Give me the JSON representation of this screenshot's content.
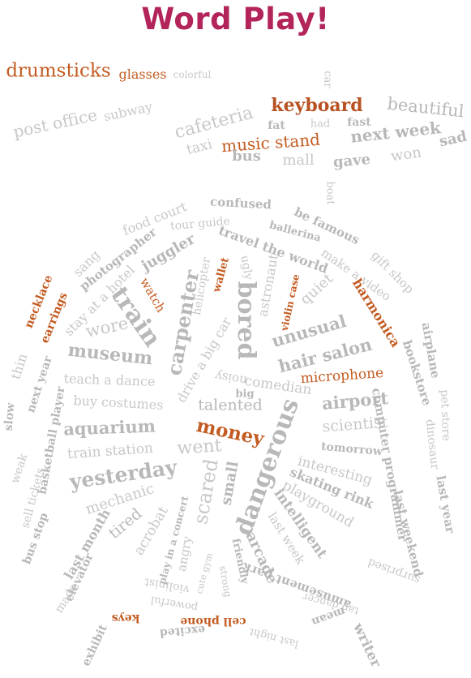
{
  "title": "Word Play!",
  "colors": {
    "title": "#b2245a",
    "accent_words": "#c35c22",
    "grey_words": "#b8b8b8"
  },
  "words": {
    "drumsticks": "drumsticks",
    "glasses": "glasses",
    "colorful": "colorful",
    "car": "car",
    "keyboard": "keyboard",
    "beautiful": "beautiful",
    "post_office": "post office",
    "subway": "subway",
    "cafeteria": "cafeteria",
    "fat": "fat",
    "had": "had",
    "fast": "fast",
    "music_stand": "music stand",
    "next_week_top": "next week",
    "sad": "sad",
    "taxi": "taxi",
    "bus": "bus",
    "mall": "mall",
    "gave": "gave",
    "won": "won",
    "boat": "boat",
    "food_court": "food court",
    "confused": "confused",
    "tour_guide": "tour guide",
    "be_famous": "be famous",
    "ballerina": "ballerina",
    "travel_the_world": "travel the world",
    "gift_shop": "gift shop",
    "sang": "sang",
    "photographer": "photographer",
    "juggler": "juggler",
    "make_a_video": "make a video",
    "stay_at_a_hotel": "stay at a hotel",
    "watch": "watch",
    "helicopter": "helicopter",
    "wallet": "wallet",
    "ugly": "ugly",
    "astronaut": "astronaut",
    "violin_case": "violin case",
    "quiet": "quiet",
    "harmonica": "harmonica",
    "necklace": "necklace",
    "earrings": "earrings",
    "train": "train",
    "carpenter": "carpenter",
    "drive_a_big_car": "drive a big car",
    "bored": "bored",
    "unusual": "unusual",
    "airplane": "airplane",
    "bookstore": "bookstore",
    "wore": "wore",
    "hair_salon": "hair salon",
    "thin": "thin",
    "next_year_left": "next year",
    "museum": "museum",
    "microphone": "microphone",
    "teach_a_dance": "teach a dance",
    "noisy": "noisy",
    "comedian": "comedian",
    "basketball_player": "basketball player",
    "buy_costumes": "buy costumes",
    "big": "big",
    "airport": "airport",
    "computer_programmer": "computer programmer",
    "pet_store": "pet store",
    "talented": "talented",
    "slow": "slow",
    "aquarium": "aquarium",
    "money": "money",
    "scientist": "scientist",
    "dinosaur": "dinosaur",
    "went": "went",
    "dangerous": "dangerous",
    "tomorrow": "tomorrow",
    "train_station": "train station",
    "weak": "weak",
    "sell_tickets": "sell tickets",
    "interesting": "interesting",
    "yesterday": "yesterday",
    "scared": "scared",
    "small": "small",
    "skating_rink": "skating rink",
    "last_year": "last year",
    "mechanic": "mechanic",
    "playground": "playground",
    "last_weekend": "last weekend",
    "bus_stop": "bus stop",
    "tired": "tired",
    "acrobat": "acrobat",
    "play_in_a_concert": "play in a concert",
    "intelligent": "intelligent",
    "last_month": "last month",
    "angry": "angry",
    "cute_gym": "cute gym",
    "friendly": "friendly",
    "last_week": "last week",
    "arcade": "arcade",
    "surprised": "surprised",
    "elevator": "elevator",
    "strong": "strong",
    "amusement_park": "amusement park",
    "made": "made",
    "violinist": "violinist",
    "powerful": "powerful",
    "tap_dancer": "tap dancer",
    "keys": "keys",
    "cell_phone": "cell phone",
    "mean": "mean",
    "exhibit": "exhibit",
    "excited": "excited",
    "last_night": "last night",
    "writer": "writer"
  }
}
